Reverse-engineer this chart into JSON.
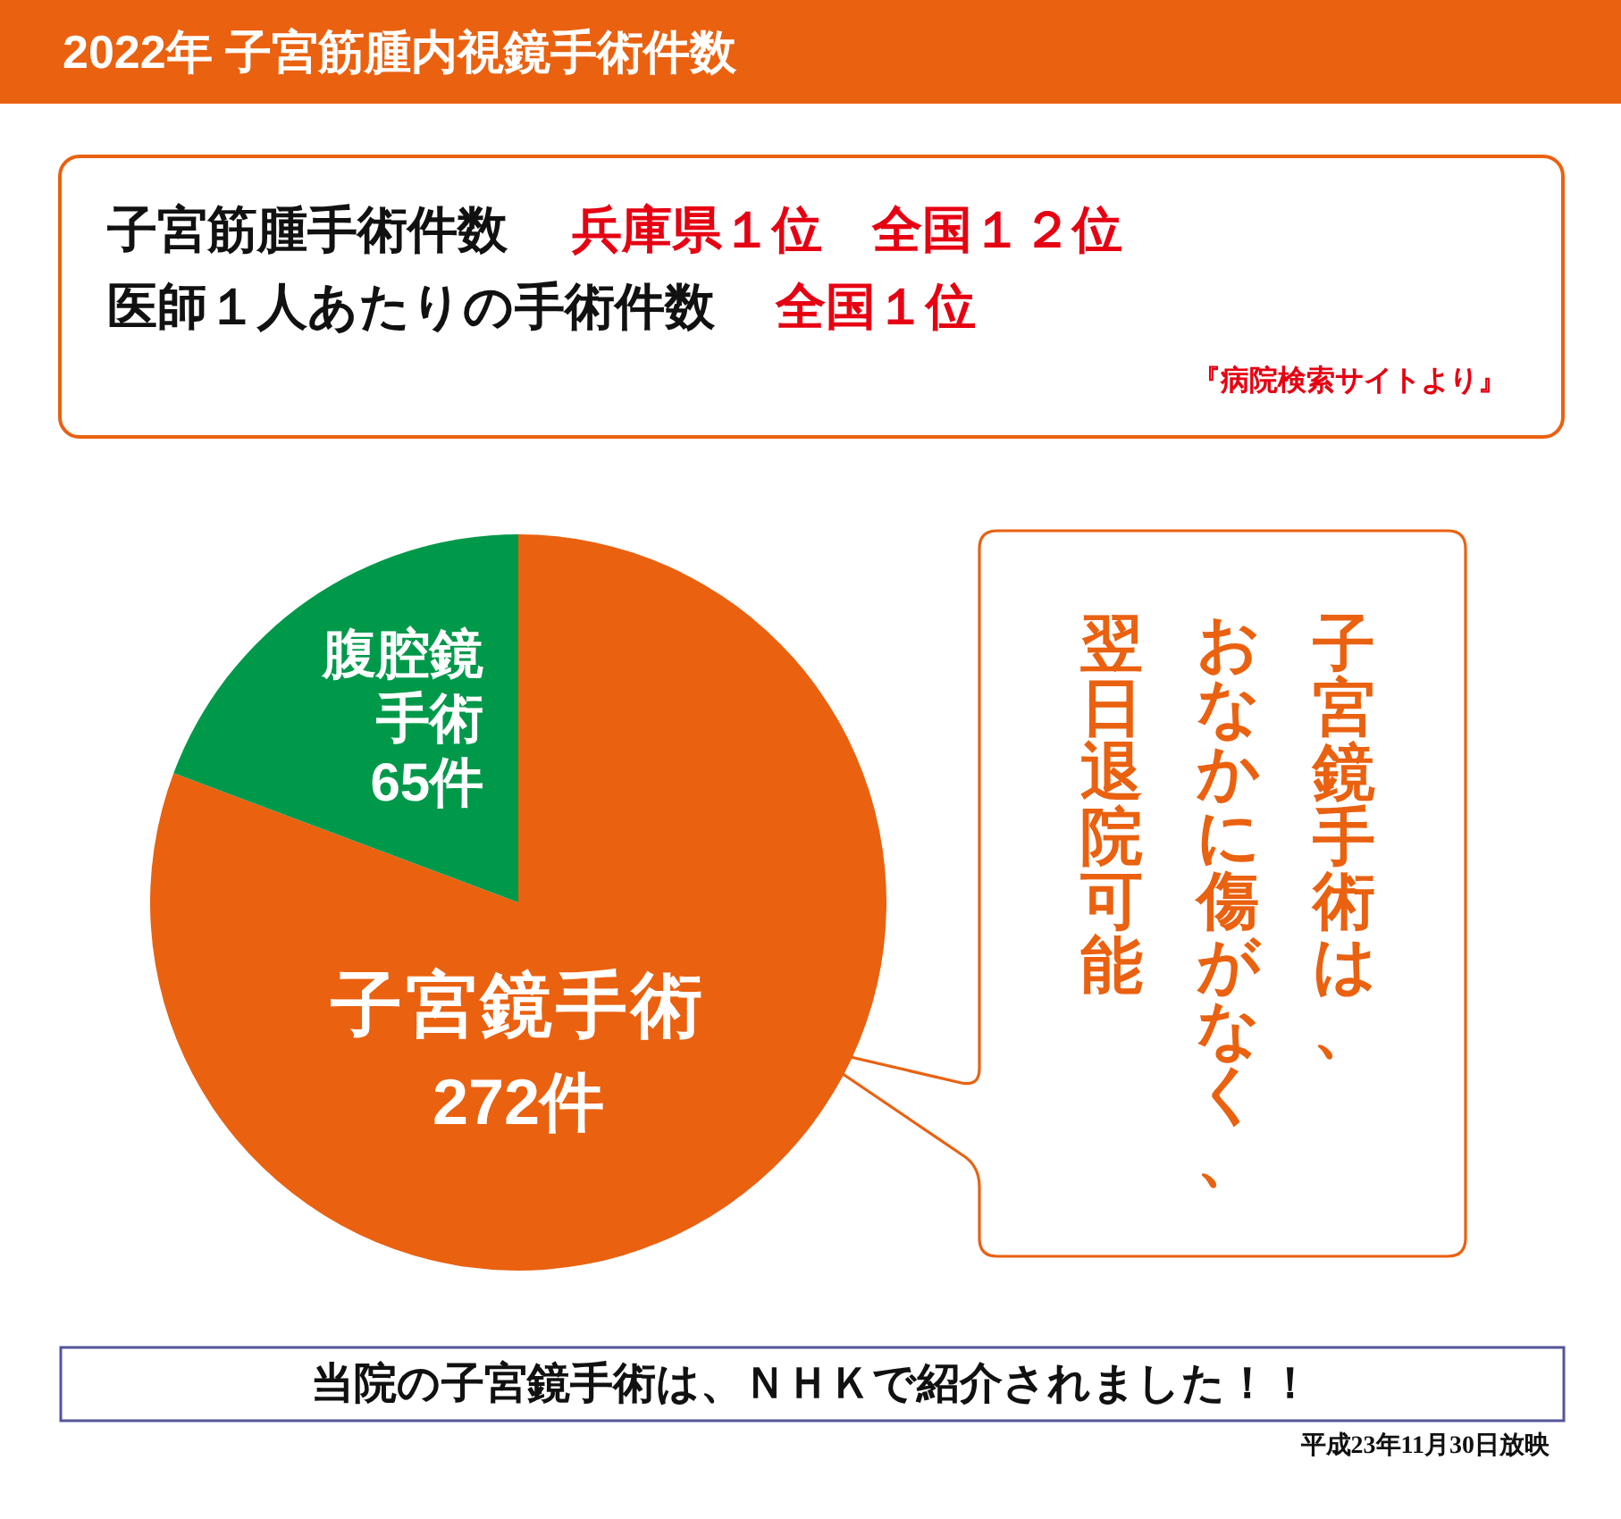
{
  "chart_data": {
    "type": "pie",
    "title": "2022年 子宮筋腫内視鏡手術件数",
    "categories": [
      "子宮鏡手術",
      "腹腔鏡手術"
    ],
    "values": [
      272,
      65
    ],
    "colors": [
      "#ea6110",
      "#00994a"
    ],
    "value_labels": [
      "272件",
      "65件"
    ],
    "annotations": [
      "子宮筋腫手術件数",
      "兵庫県１位　全国１２位",
      "医師１人あたりの手術件数",
      "全国１位",
      "『病院検索サイトより』",
      "子宮鏡手術は、",
      "おなかに傷がなく、",
      "翌日退院可能",
      "当院の子宮鏡手術は、ＮＨＫで紹介されました！！",
      "平成23年11月30日放映"
    ]
  }
}
